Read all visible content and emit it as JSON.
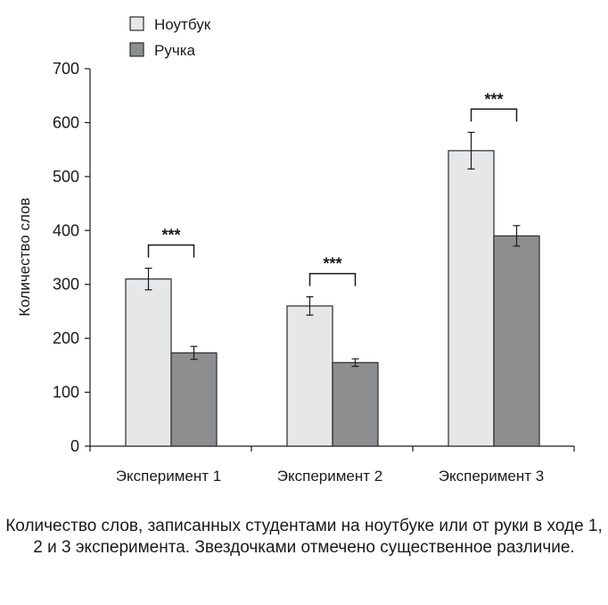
{
  "chart_data": {
    "type": "bar",
    "categories": [
      "Эксперимент 1",
      "Эксперимент 2",
      "Эксперимент 3"
    ],
    "series": [
      {
        "name": "Ноутбук",
        "values": [
          310,
          260,
          548
        ],
        "errors": [
          20,
          17,
          34
        ],
        "color": "#e6e7e9"
      },
      {
        "name": "Ручка",
        "values": [
          173,
          155,
          390
        ],
        "errors": [
          12,
          7,
          19
        ],
        "color": "#8c8e90"
      }
    ],
    "ylabel": "Количество слов",
    "ylim": [
      0,
      700
    ],
    "yticks": [
      0,
      100,
      200,
      300,
      400,
      500,
      600,
      700
    ],
    "grid": false,
    "legend": "top-left",
    "significance": [
      "***",
      "***",
      "***"
    ]
  },
  "caption": "Количество слов, записанных студентами на ноутбуке или от руки в ходе 1, 2 и 3 эксперимента. Звездочками отмечено существенное различие."
}
